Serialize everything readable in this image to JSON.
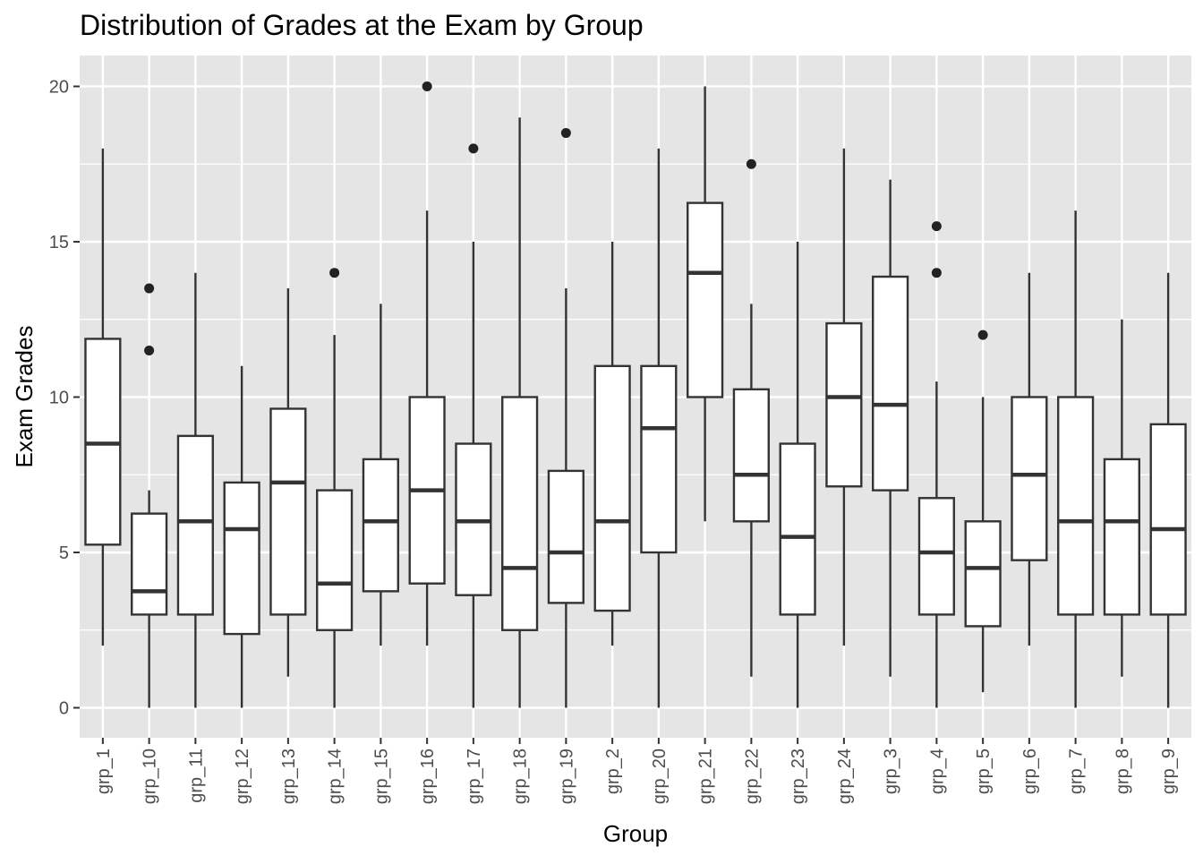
{
  "chart_data": {
    "type": "boxplot",
    "title": "Distribution of Grades at the Exam by Group",
    "xlabel": "Group",
    "ylabel": "Exam Grades",
    "ylim": [
      -1,
      21
    ],
    "yticks": [
      0,
      5,
      10,
      15,
      20
    ],
    "grid": true,
    "legend": "none",
    "colors": {
      "panel_background": "#e5e5e5",
      "grid": "#ffffff",
      "box_fill": "#ffffff",
      "box_stroke": "#333333",
      "outlier": "#222222"
    },
    "categories": [
      "grp_1",
      "grp_10",
      "grp_11",
      "grp_12",
      "grp_13",
      "grp_14",
      "grp_15",
      "grp_16",
      "grp_17",
      "grp_18",
      "grp_19",
      "grp_2",
      "grp_20",
      "grp_21",
      "grp_22",
      "grp_23",
      "grp_24",
      "grp_3",
      "grp_4",
      "grp_5",
      "grp_6",
      "grp_7",
      "grp_8",
      "grp_9"
    ],
    "boxes": [
      {
        "group": "grp_1",
        "min": 2,
        "q1": 5.25,
        "median": 8.5,
        "q3": 11.875,
        "max": 18,
        "outliers": []
      },
      {
        "group": "grp_10",
        "min": 0,
        "q1": 3,
        "median": 3.75,
        "q3": 6.25,
        "max": 7,
        "outliers": [
          11.5,
          13.5
        ]
      },
      {
        "group": "grp_11",
        "min": 0,
        "q1": 3,
        "median": 6,
        "q3": 8.75,
        "max": 14,
        "outliers": []
      },
      {
        "group": "grp_12",
        "min": 0,
        "q1": 2.375,
        "median": 5.75,
        "q3": 7.25,
        "max": 11,
        "outliers": []
      },
      {
        "group": "grp_13",
        "min": 1,
        "q1": 3,
        "median": 7.25,
        "q3": 9.625,
        "max": 13.5,
        "outliers": []
      },
      {
        "group": "grp_14",
        "min": 0,
        "q1": 2.5,
        "median": 4,
        "q3": 7,
        "max": 12,
        "outliers": [
          14
        ]
      },
      {
        "group": "grp_15",
        "min": 2,
        "q1": 3.75,
        "median": 6,
        "q3": 8,
        "max": 13,
        "outliers": []
      },
      {
        "group": "grp_16",
        "min": 2,
        "q1": 4,
        "median": 7,
        "q3": 10,
        "max": 16,
        "outliers": [
          20
        ]
      },
      {
        "group": "grp_17",
        "min": 0,
        "q1": 3.625,
        "median": 6,
        "q3": 8.5,
        "max": 15,
        "outliers": [
          18
        ]
      },
      {
        "group": "grp_18",
        "min": 0,
        "q1": 2.5,
        "median": 4.5,
        "q3": 10,
        "max": 19,
        "outliers": []
      },
      {
        "group": "grp_19",
        "min": 0,
        "q1": 3.375,
        "median": 5,
        "q3": 7.625,
        "max": 13.5,
        "outliers": [
          18.5
        ]
      },
      {
        "group": "grp_2",
        "min": 2,
        "q1": 3.125,
        "median": 6,
        "q3": 11,
        "max": 15,
        "outliers": []
      },
      {
        "group": "grp_20",
        "min": 0,
        "q1": 5,
        "median": 9,
        "q3": 11,
        "max": 18,
        "outliers": []
      },
      {
        "group": "grp_21",
        "min": 6,
        "q1": 10,
        "median": 14,
        "q3": 16.25,
        "max": 20,
        "outliers": []
      },
      {
        "group": "grp_22",
        "min": 1,
        "q1": 6,
        "median": 7.5,
        "q3": 10.25,
        "max": 13,
        "outliers": [
          17.5
        ]
      },
      {
        "group": "grp_23",
        "min": 0,
        "q1": 3,
        "median": 5.5,
        "q3": 8.5,
        "max": 15,
        "outliers": []
      },
      {
        "group": "grp_24",
        "min": 2,
        "q1": 7.125,
        "median": 10,
        "q3": 12.375,
        "max": 18,
        "outliers": []
      },
      {
        "group": "grp_3",
        "min": 1,
        "q1": 7,
        "median": 9.75,
        "q3": 13.875,
        "max": 17,
        "outliers": []
      },
      {
        "group": "grp_4",
        "min": 0,
        "q1": 3,
        "median": 5,
        "q3": 6.75,
        "max": 10.5,
        "outliers": [
          14,
          15.5
        ]
      },
      {
        "group": "grp_5",
        "min": 0.5,
        "q1": 2.625,
        "median": 4.5,
        "q3": 6,
        "max": 10,
        "outliers": [
          12
        ]
      },
      {
        "group": "grp_6",
        "min": 2,
        "q1": 4.75,
        "median": 7.5,
        "q3": 10,
        "max": 14,
        "outliers": []
      },
      {
        "group": "grp_7",
        "min": 0,
        "q1": 3,
        "median": 6,
        "q3": 10,
        "max": 16,
        "outliers": []
      },
      {
        "group": "grp_8",
        "min": 1,
        "q1": 3,
        "median": 6,
        "q3": 8,
        "max": 12.5,
        "outliers": []
      },
      {
        "group": "grp_9",
        "min": 0,
        "q1": 3,
        "median": 5.75,
        "q3": 9.125,
        "max": 14,
        "outliers": []
      }
    ]
  }
}
